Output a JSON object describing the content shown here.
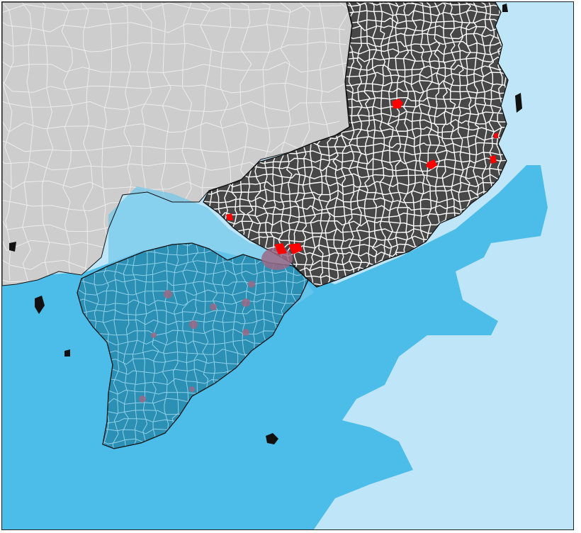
{
  "map": {
    "colors": {
      "deep_sea": "#4cbde9",
      "shelf_sea": "#bfe6f8",
      "shallow_band": "#6fc6e9",
      "neighbor_land": "#cdcdcd",
      "neighbor_borders": "#ececec",
      "southern_region": "#2c8fb4",
      "southern_borders": "#8fd0e8",
      "southeast_region": "#474747",
      "southeast_borders": "#ffffff",
      "highlight_urban": "#ff0000",
      "highlight_urban_translucent": "#9a6a86",
      "coastline": "#111111"
    },
    "layers": [
      "neighbor-land",
      "southern-region",
      "southeast-region",
      "shallow-water-zone",
      "urban-highlights",
      "islands"
    ]
  }
}
